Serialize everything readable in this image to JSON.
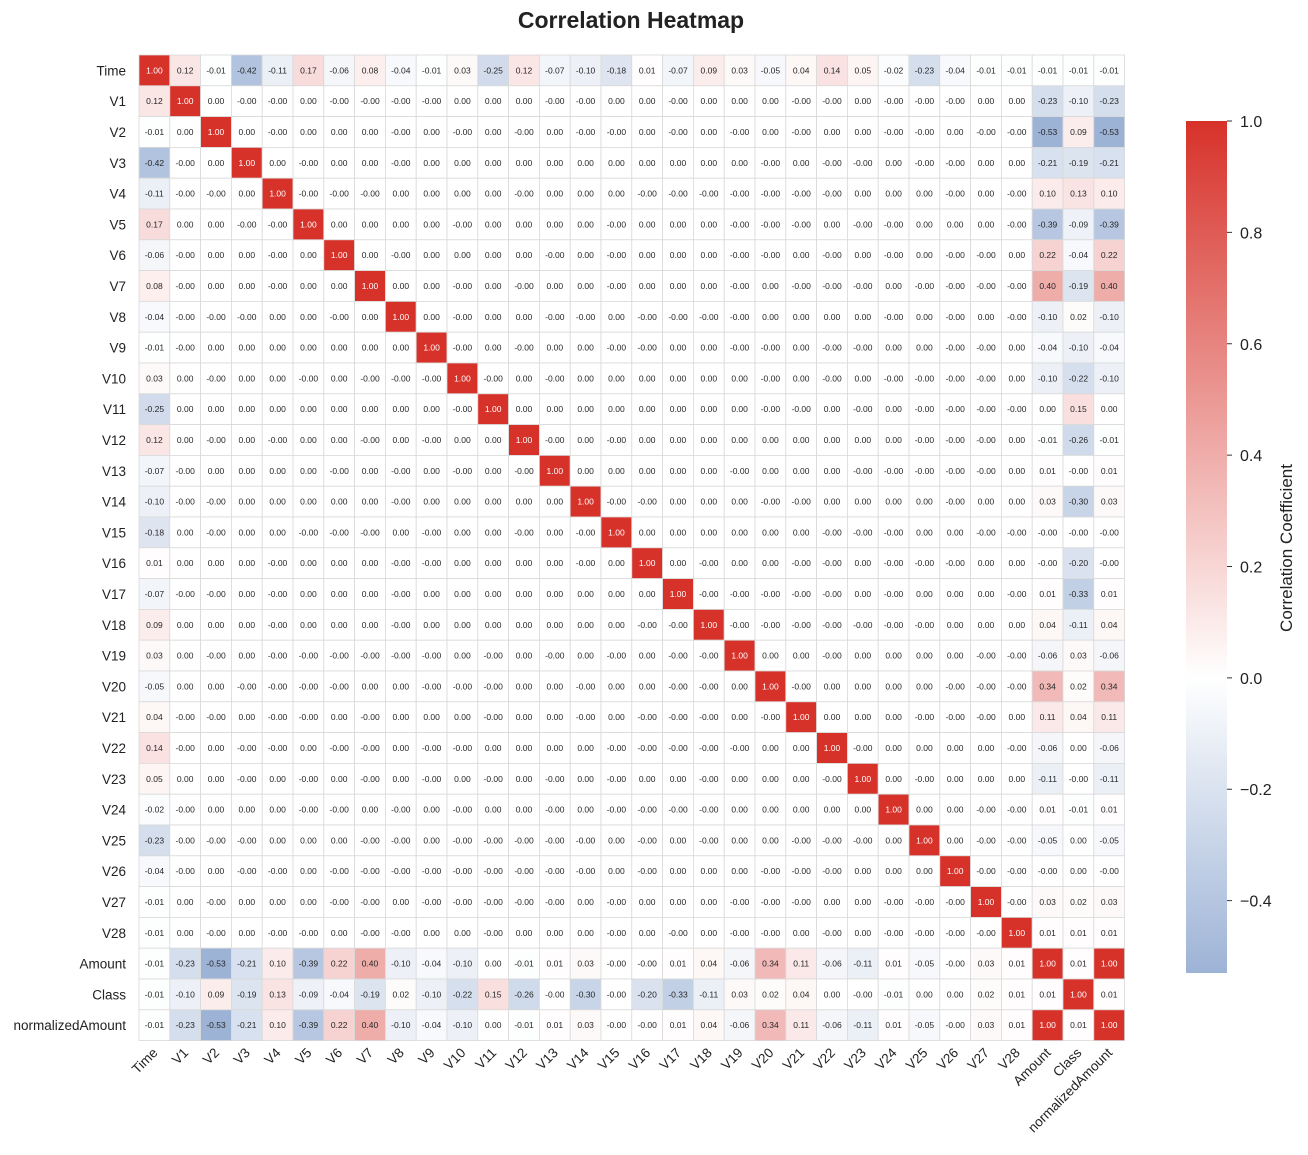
{
  "chart_data": {
    "type": "heatmap",
    "title": "Correlation Heatmap",
    "labels": [
      "Time",
      "V1",
      "V2",
      "V3",
      "V4",
      "V5",
      "V6",
      "V7",
      "V8",
      "V9",
      "V10",
      "V11",
      "V12",
      "V13",
      "V14",
      "V15",
      "V16",
      "V17",
      "V18",
      "V19",
      "V20",
      "V21",
      "V22",
      "V23",
      "V24",
      "V25",
      "V26",
      "V27",
      "V28",
      "Amount",
      "Class",
      "normalizedAmount"
    ],
    "matrix": [
      [
        "1.00",
        "0.12",
        "-0.01",
        "-0.42",
        "-0.11",
        "0.17",
        "-0.06",
        "0.08",
        "-0.04",
        "-0.01",
        "0.03",
        "-0.25",
        "0.12",
        "-0.07",
        "-0.10",
        "-0.18",
        "0.01",
        "-0.07",
        "0.09",
        "0.03",
        "-0.05",
        "0.04",
        "0.14",
        "0.05",
        "-0.02",
        "-0.23",
        "-0.04",
        "-0.01",
        "-0.01",
        "-0.01",
        "-0.01",
        "-0.01"
      ],
      [
        "0.12",
        "1.00",
        "0.00",
        "-0.00",
        "-0.00",
        "0.00",
        "-0.00",
        "-0.00",
        "-0.00",
        "-0.00",
        "0.00",
        "0.00",
        "0.00",
        "-0.00",
        "-0.00",
        "0.00",
        "0.00",
        "-0.00",
        "0.00",
        "0.00",
        "0.00",
        "-0.00",
        "-0.00",
        "0.00",
        "-0.00",
        "-0.00",
        "-0.00",
        "0.00",
        "0.00",
        "-0.23",
        "-0.10",
        "-0.23"
      ],
      [
        "-0.01",
        "0.00",
        "1.00",
        "0.00",
        "-0.00",
        "0.00",
        "0.00",
        "0.00",
        "-0.00",
        "0.00",
        "-0.00",
        "0.00",
        "-0.00",
        "0.00",
        "-0.00",
        "-0.00",
        "0.00",
        "-0.00",
        "0.00",
        "-0.00",
        "0.00",
        "-0.00",
        "0.00",
        "0.00",
        "-0.00",
        "-0.00",
        "0.00",
        "-0.00",
        "-0.00",
        "-0.53",
        "0.09",
        "-0.53"
      ],
      [
        "-0.42",
        "-0.00",
        "0.00",
        "1.00",
        "0.00",
        "-0.00",
        "0.00",
        "0.00",
        "-0.00",
        "0.00",
        "0.00",
        "0.00",
        "0.00",
        "0.00",
        "0.00",
        "0.00",
        "0.00",
        "0.00",
        "0.00",
        "0.00",
        "-0.00",
        "0.00",
        "-0.00",
        "-0.00",
        "0.00",
        "-0.00",
        "-0.00",
        "0.00",
        "0.00",
        "-0.21",
        "-0.19",
        "-0.21"
      ],
      [
        "-0.11",
        "-0.00",
        "-0.00",
        "0.00",
        "1.00",
        "-0.00",
        "-0.00",
        "-0.00",
        "0.00",
        "0.00",
        "0.00",
        "0.00",
        "-0.00",
        "0.00",
        "0.00",
        "0.00",
        "-0.00",
        "-0.00",
        "-0.00",
        "-0.00",
        "-0.00",
        "-0.00",
        "-0.00",
        "0.00",
        "0.00",
        "0.00",
        "-0.00",
        "0.00",
        "-0.00",
        "0.10",
        "0.13",
        "0.10"
      ],
      [
        "0.17",
        "0.00",
        "0.00",
        "-0.00",
        "-0.00",
        "1.00",
        "0.00",
        "0.00",
        "0.00",
        "0.00",
        "-0.00",
        "0.00",
        "0.00",
        "0.00",
        "0.00",
        "-0.00",
        "0.00",
        "0.00",
        "0.00",
        "-0.00",
        "-0.00",
        "-0.00",
        "0.00",
        "-0.00",
        "-0.00",
        "0.00",
        "0.00",
        "0.00",
        "-0.00",
        "-0.39",
        "-0.09",
        "-0.39"
      ],
      [
        "-0.06",
        "-0.00",
        "0.00",
        "0.00",
        "-0.00",
        "0.00",
        "1.00",
        "0.00",
        "-0.00",
        "0.00",
        "0.00",
        "0.00",
        "0.00",
        "-0.00",
        "0.00",
        "-0.00",
        "0.00",
        "0.00",
        "0.00",
        "-0.00",
        "-0.00",
        "0.00",
        "-0.00",
        "0.00",
        "-0.00",
        "0.00",
        "-0.00",
        "-0.00",
        "0.00",
        "0.22",
        "-0.04",
        "0.22"
      ],
      [
        "0.08",
        "-0.00",
        "0.00",
        "0.00",
        "-0.00",
        "0.00",
        "0.00",
        "1.00",
        "0.00",
        "0.00",
        "-0.00",
        "0.00",
        "-0.00",
        "0.00",
        "0.00",
        "-0.00",
        "0.00",
        "0.00",
        "0.00",
        "-0.00",
        "0.00",
        "-0.00",
        "-0.00",
        "-0.00",
        "0.00",
        "-0.00",
        "-0.00",
        "-0.00",
        "-0.00",
        "0.40",
        "-0.19",
        "0.40"
      ],
      [
        "-0.04",
        "-0.00",
        "-0.00",
        "-0.00",
        "0.00",
        "0.00",
        "-0.00",
        "0.00",
        "1.00",
        "0.00",
        "-0.00",
        "0.00",
        "0.00",
        "-0.00",
        "-0.00",
        "0.00",
        "-0.00",
        "-0.00",
        "-0.00",
        "-0.00",
        "0.00",
        "0.00",
        "0.00",
        "0.00",
        "-0.00",
        "0.00",
        "-0.00",
        "0.00",
        "-0.00",
        "-0.10",
        "0.02",
        "-0.10"
      ],
      [
        "-0.01",
        "-0.00",
        "0.00",
        "0.00",
        "0.00",
        "0.00",
        "0.00",
        "0.00",
        "0.00",
        "1.00",
        "-0.00",
        "0.00",
        "-0.00",
        "0.00",
        "0.00",
        "-0.00",
        "-0.00",
        "0.00",
        "0.00",
        "-0.00",
        "-0.00",
        "0.00",
        "-0.00",
        "-0.00",
        "0.00",
        "0.00",
        "-0.00",
        "-0.00",
        "0.00",
        "-0.04",
        "-0.10",
        "-0.04"
      ],
      [
        "0.03",
        "0.00",
        "-0.00",
        "0.00",
        "0.00",
        "-0.00",
        "0.00",
        "-0.00",
        "-0.00",
        "-0.00",
        "1.00",
        "-0.00",
        "0.00",
        "-0.00",
        "0.00",
        "0.00",
        "0.00",
        "0.00",
        "0.00",
        "0.00",
        "-0.00",
        "0.00",
        "-0.00",
        "0.00",
        "-0.00",
        "-0.00",
        "-0.00",
        "-0.00",
        "0.00",
        "-0.10",
        "-0.22",
        "-0.10"
      ],
      [
        "-0.25",
        "0.00",
        "0.00",
        "0.00",
        "0.00",
        "0.00",
        "0.00",
        "0.00",
        "0.00",
        "0.00",
        "-0.00",
        "1.00",
        "0.00",
        "0.00",
        "0.00",
        "0.00",
        "0.00",
        "0.00",
        "0.00",
        "0.00",
        "-0.00",
        "-0.00",
        "0.00",
        "-0.00",
        "0.00",
        "-0.00",
        "-0.00",
        "-0.00",
        "-0.00",
        "0.00",
        "0.15",
        "0.00"
      ],
      [
        "0.12",
        "0.00",
        "-0.00",
        "0.00",
        "-0.00",
        "0.00",
        "0.00",
        "-0.00",
        "0.00",
        "-0.00",
        "0.00",
        "0.00",
        "1.00",
        "-0.00",
        "0.00",
        "-0.00",
        "0.00",
        "0.00",
        "0.00",
        "0.00",
        "0.00",
        "0.00",
        "0.00",
        "0.00",
        "0.00",
        "-0.00",
        "-0.00",
        "-0.00",
        "0.00",
        "-0.01",
        "-0.26",
        "-0.01"
      ],
      [
        "-0.07",
        "-0.00",
        "0.00",
        "0.00",
        "0.00",
        "0.00",
        "-0.00",
        "0.00",
        "-0.00",
        "0.00",
        "-0.00",
        "0.00",
        "-0.00",
        "1.00",
        "0.00",
        "0.00",
        "0.00",
        "0.00",
        "0.00",
        "-0.00",
        "0.00",
        "0.00",
        "0.00",
        "-0.00",
        "-0.00",
        "-0.00",
        "-0.00",
        "-0.00",
        "0.00",
        "0.01",
        "-0.00",
        "0.01"
      ],
      [
        "-0.10",
        "-0.00",
        "-0.00",
        "0.00",
        "0.00",
        "0.00",
        "0.00",
        "0.00",
        "-0.00",
        "0.00",
        "0.00",
        "0.00",
        "0.00",
        "0.00",
        "1.00",
        "-0.00",
        "-0.00",
        "0.00",
        "0.00",
        "0.00",
        "-0.00",
        "-0.00",
        "0.00",
        "0.00",
        "0.00",
        "0.00",
        "-0.00",
        "0.00",
        "0.00",
        "0.03",
        "-0.30",
        "0.03"
      ],
      [
        "-0.18",
        "0.00",
        "-0.00",
        "0.00",
        "0.00",
        "-0.00",
        "-0.00",
        "-0.00",
        "0.00",
        "-0.00",
        "0.00",
        "0.00",
        "-0.00",
        "0.00",
        "-0.00",
        "1.00",
        "0.00",
        "0.00",
        "0.00",
        "0.00",
        "0.00",
        "0.00",
        "-0.00",
        "-0.00",
        "-0.00",
        "0.00",
        "0.00",
        "-0.00",
        "-0.00",
        "-0.00",
        "-0.00",
        "-0.00"
      ],
      [
        "0.01",
        "0.00",
        "0.00",
        "0.00",
        "-0.00",
        "0.00",
        "0.00",
        "0.00",
        "-0.00",
        "-0.00",
        "0.00",
        "0.00",
        "0.00",
        "0.00",
        "-0.00",
        "0.00",
        "1.00",
        "0.00",
        "-0.00",
        "0.00",
        "0.00",
        "-0.00",
        "-0.00",
        "0.00",
        "-0.00",
        "-0.00",
        "-0.00",
        "0.00",
        "0.00",
        "-0.00",
        "-0.20",
        "-0.00"
      ],
      [
        "-0.07",
        "-0.00",
        "-0.00",
        "0.00",
        "-0.00",
        "0.00",
        "0.00",
        "0.00",
        "-0.00",
        "0.00",
        "0.00",
        "0.00",
        "0.00",
        "0.00",
        "0.00",
        "0.00",
        "0.00",
        "1.00",
        "-0.00",
        "-0.00",
        "-0.00",
        "-0.00",
        "-0.00",
        "0.00",
        "-0.00",
        "0.00",
        "0.00",
        "0.00",
        "-0.00",
        "0.01",
        "-0.33",
        "0.01"
      ],
      [
        "0.09",
        "0.00",
        "0.00",
        "0.00",
        "-0.00",
        "0.00",
        "0.00",
        "0.00",
        "-0.00",
        "0.00",
        "0.00",
        "0.00",
        "0.00",
        "0.00",
        "0.00",
        "0.00",
        "-0.00",
        "-0.00",
        "1.00",
        "-0.00",
        "-0.00",
        "-0.00",
        "-0.00",
        "-0.00",
        "-0.00",
        "-0.00",
        "0.00",
        "0.00",
        "0.00",
        "0.04",
        "-0.11",
        "0.04"
      ],
      [
        "0.03",
        "0.00",
        "-0.00",
        "0.00",
        "-0.00",
        "-0.00",
        "-0.00",
        "-0.00",
        "-0.00",
        "-0.00",
        "0.00",
        "-0.00",
        "0.00",
        "-0.00",
        "0.00",
        "-0.00",
        "0.00",
        "-0.00",
        "-0.00",
        "1.00",
        "0.00",
        "0.00",
        "-0.00",
        "0.00",
        "0.00",
        "0.00",
        "0.00",
        "-0.00",
        "-0.00",
        "-0.06",
        "0.03",
        "-0.06"
      ],
      [
        "-0.05",
        "0.00",
        "0.00",
        "-0.00",
        "-0.00",
        "-0.00",
        "-0.00",
        "0.00",
        "0.00",
        "-0.00",
        "-0.00",
        "-0.00",
        "0.00",
        "0.00",
        "-0.00",
        "0.00",
        "0.00",
        "-0.00",
        "-0.00",
        "0.00",
        "1.00",
        "-0.00",
        "0.00",
        "0.00",
        "0.00",
        "0.00",
        "-0.00",
        "-0.00",
        "-0.00",
        "0.34",
        "0.02",
        "0.34"
      ],
      [
        "0.04",
        "-0.00",
        "-0.00",
        "0.00",
        "-0.00",
        "-0.00",
        "0.00",
        "-0.00",
        "0.00",
        "0.00",
        "0.00",
        "-0.00",
        "0.00",
        "0.00",
        "-0.00",
        "0.00",
        "-0.00",
        "-0.00",
        "-0.00",
        "0.00",
        "-0.00",
        "1.00",
        "0.00",
        "0.00",
        "0.00",
        "-0.00",
        "-0.00",
        "-0.00",
        "0.00",
        "0.11",
        "0.04",
        "0.11"
      ],
      [
        "0.14",
        "-0.00",
        "0.00",
        "-0.00",
        "-0.00",
        "0.00",
        "-0.00",
        "-0.00",
        "0.00",
        "-0.00",
        "-0.00",
        "0.00",
        "0.00",
        "0.00",
        "0.00",
        "-0.00",
        "-0.00",
        "-0.00",
        "-0.00",
        "-0.00",
        "0.00",
        "0.00",
        "1.00",
        "-0.00",
        "0.00",
        "0.00",
        "0.00",
        "0.00",
        "-0.00",
        "-0.06",
        "0.00",
        "-0.06"
      ],
      [
        "0.05",
        "0.00",
        "0.00",
        "-0.00",
        "0.00",
        "-0.00",
        "0.00",
        "-0.00",
        "0.00",
        "-0.00",
        "0.00",
        "-0.00",
        "0.00",
        "-0.00",
        "0.00",
        "-0.00",
        "0.00",
        "0.00",
        "-0.00",
        "0.00",
        "0.00",
        "0.00",
        "-0.00",
        "1.00",
        "0.00",
        "-0.00",
        "0.00",
        "0.00",
        "0.00",
        "-0.11",
        "-0.00",
        "-0.11"
      ],
      [
        "-0.02",
        "-0.00",
        "0.00",
        "0.00",
        "0.00",
        "-0.00",
        "-0.00",
        "0.00",
        "-0.00",
        "0.00",
        "-0.00",
        "0.00",
        "0.00",
        "-0.00",
        "0.00",
        "-0.00",
        "-0.00",
        "-0.00",
        "-0.00",
        "0.00",
        "0.00",
        "0.00",
        "0.00",
        "0.00",
        "1.00",
        "0.00",
        "0.00",
        "-0.00",
        "-0.00",
        "0.01",
        "-0.01",
        "0.01"
      ],
      [
        "-0.23",
        "-0.00",
        "-0.00",
        "-0.00",
        "0.00",
        "0.00",
        "0.00",
        "-0.00",
        "-0.00",
        "0.00",
        "-0.00",
        "-0.00",
        "-0.00",
        "-0.00",
        "-0.00",
        "0.00",
        "-0.00",
        "0.00",
        "-0.00",
        "0.00",
        "0.00",
        "-0.00",
        "-0.00",
        "-0.00",
        "0.00",
        "1.00",
        "0.00",
        "-0.00",
        "-0.00",
        "-0.05",
        "0.00",
        "-0.05"
      ],
      [
        "-0.04",
        "-0.00",
        "0.00",
        "-0.00",
        "-0.00",
        "0.00",
        "-0.00",
        "-0.00",
        "-0.00",
        "-0.00",
        "-0.00",
        "-0.00",
        "-0.00",
        "-0.00",
        "-0.00",
        "0.00",
        "-0.00",
        "0.00",
        "0.00",
        "0.00",
        "-0.00",
        "-0.00",
        "-0.00",
        "0.00",
        "0.00",
        "0.00",
        "1.00",
        "-0.00",
        "-0.00",
        "-0.00",
        "0.00",
        "-0.00"
      ],
      [
        "-0.01",
        "0.00",
        "-0.00",
        "0.00",
        "0.00",
        "0.00",
        "-0.00",
        "-0.00",
        "0.00",
        "-0.00",
        "-0.00",
        "-0.00",
        "-0.00",
        "-0.00",
        "0.00",
        "-0.00",
        "0.00",
        "0.00",
        "0.00",
        "-0.00",
        "-0.00",
        "-0.00",
        "0.00",
        "0.00",
        "-0.00",
        "-0.00",
        "-0.00",
        "1.00",
        "-0.00",
        "0.03",
        "0.02",
        "0.03"
      ],
      [
        "-0.01",
        "0.00",
        "-0.00",
        "0.00",
        "-0.00",
        "-0.00",
        "0.00",
        "-0.00",
        "-0.00",
        "0.00",
        "0.00",
        "-0.00",
        "0.00",
        "0.00",
        "0.00",
        "-0.00",
        "0.00",
        "-0.00",
        "0.00",
        "-0.00",
        "-0.00",
        "0.00",
        "-0.00",
        "0.00",
        "-0.00",
        "-0.00",
        "-0.00",
        "-0.00",
        "1.00",
        "0.01",
        "0.01",
        "0.01"
      ],
      [
        "-0.01",
        "-0.23",
        "-0.53",
        "-0.21",
        "0.10",
        "-0.39",
        "0.22",
        "0.40",
        "-0.10",
        "-0.04",
        "-0.10",
        "0.00",
        "-0.01",
        "0.01",
        "0.03",
        "-0.00",
        "-0.00",
        "0.01",
        "0.04",
        "-0.06",
        "0.34",
        "0.11",
        "-0.06",
        "-0.11",
        "0.01",
        "-0.05",
        "-0.00",
        "0.03",
        "0.01",
        "1.00",
        "0.01",
        "1.00"
      ],
      [
        "-0.01",
        "-0.10",
        "0.09",
        "-0.19",
        "0.13",
        "-0.09",
        "-0.04",
        "-0.19",
        "0.02",
        "-0.10",
        "-0.22",
        "0.15",
        "-0.26",
        "-0.00",
        "-0.30",
        "-0.00",
        "-0.20",
        "-0.33",
        "-0.11",
        "0.03",
        "0.02",
        "0.04",
        "0.00",
        "-0.00",
        "-0.01",
        "0.00",
        "0.00",
        "0.02",
        "0.01",
        "0.01",
        "1.00",
        "0.01"
      ],
      [
        "-0.01",
        "-0.23",
        "-0.53",
        "-0.21",
        "0.10",
        "-0.39",
        "0.22",
        "0.40",
        "-0.10",
        "-0.04",
        "-0.10",
        "0.00",
        "-0.01",
        "0.01",
        "0.03",
        "-0.00",
        "-0.00",
        "0.01",
        "0.04",
        "-0.06",
        "0.34",
        "0.11",
        "-0.06",
        "-0.11",
        "0.01",
        "-0.05",
        "-0.00",
        "0.03",
        "0.01",
        "1.00",
        "0.01",
        "1.00"
      ]
    ],
    "colorbar": {
      "label": "Correlation Coefficient",
      "range": [
        -0.53,
        1.0
      ],
      "ticks": [
        "1.0",
        "0.8",
        "0.6",
        "0.4",
        "0.2",
        "0.0",
        "−0.2",
        "−0.4"
      ],
      "tick_values": [
        1.0,
        0.8,
        0.6,
        0.4,
        0.2,
        0.0,
        -0.2,
        -0.4
      ],
      "colormap": [
        "#9db3d6",
        "#ffffff",
        "#d7322a"
      ]
    },
    "grid": true
  }
}
